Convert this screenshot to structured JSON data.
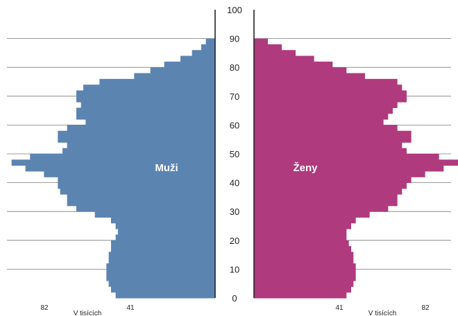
{
  "chart_data": {
    "type": "bar",
    "orientation": "horizontal-population-pyramid",
    "y_axis": {
      "range": [
        0,
        100
      ],
      "ticks": [
        "0",
        "10",
        "20",
        "30",
        "40",
        "50",
        "60",
        "70",
        "80",
        "90",
        "100"
      ]
    },
    "x_axis": {
      "left_ticks": [
        "82",
        "41"
      ],
      "right_ticks": [
        "41",
        "82"
      ],
      "left_unit": "V tisících",
      "right_unit": "V tisících",
      "max": 90
    },
    "grid": true,
    "series": [
      {
        "name": "Muži",
        "side": "left",
        "color": "#5b84b1",
        "ages": [
          0,
          2,
          4,
          6,
          8,
          10,
          12,
          14,
          16,
          18,
          20,
          22,
          24,
          26,
          28,
          30,
          32,
          34,
          36,
          38,
          40,
          42,
          44,
          46,
          48,
          50,
          52,
          54,
          56,
          58,
          60,
          62,
          64,
          66,
          68,
          70,
          72,
          74,
          76,
          78,
          80,
          82,
          84,
          86,
          88,
          90
        ],
        "values": [
          43,
          45,
          46,
          47,
          47,
          47,
          46,
          46,
          45,
          45,
          43,
          42,
          43,
          45,
          52,
          60,
          64,
          64,
          67,
          68,
          68,
          74,
          82,
          88,
          80,
          66,
          64,
          68,
          68,
          64,
          56,
          60,
          60,
          58,
          60,
          60,
          57,
          50,
          35,
          28,
          22,
          15,
          10,
          6,
          4,
          0
        ]
      },
      {
        "name": "Ženy",
        "side": "right",
        "color": "#b03a7e",
        "ages": [
          0,
          2,
          4,
          6,
          8,
          10,
          12,
          14,
          16,
          18,
          20,
          22,
          24,
          26,
          28,
          30,
          32,
          34,
          36,
          38,
          40,
          42,
          44,
          46,
          48,
          50,
          52,
          54,
          56,
          58,
          60,
          62,
          64,
          66,
          68,
          70,
          72,
          74,
          76,
          78,
          80,
          82,
          84,
          86,
          88,
          90
        ],
        "values": [
          40,
          42,
          43,
          44,
          44,
          44,
          43,
          43,
          42,
          41,
          40,
          40,
          42,
          44,
          50,
          58,
          62,
          62,
          64,
          66,
          68,
          74,
          82,
          90,
          80,
          66,
          64,
          68,
          68,
          62,
          56,
          58,
          60,
          62,
          66,
          66,
          64,
          62,
          48,
          40,
          34,
          26,
          18,
          12,
          6,
          0
        ]
      }
    ]
  }
}
